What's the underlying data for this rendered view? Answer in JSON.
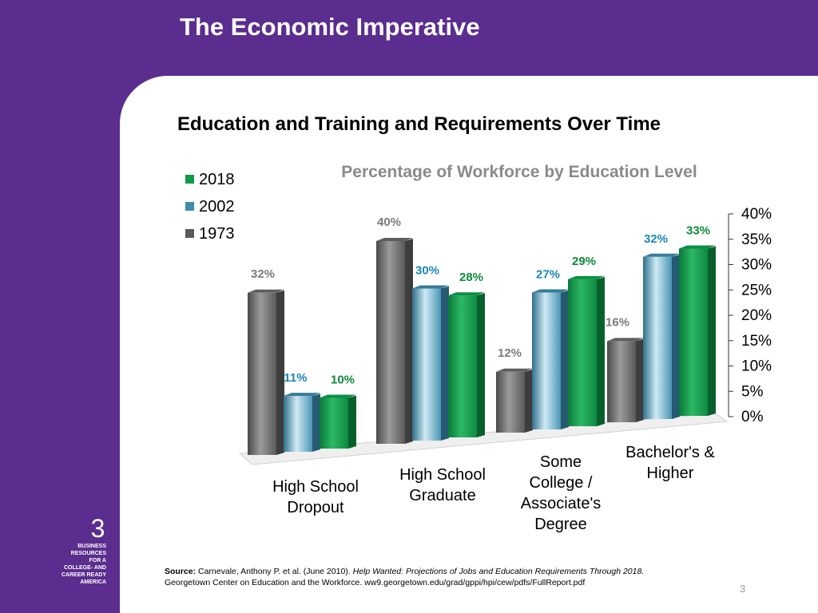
{
  "slide": {
    "title": "The Economic Imperative",
    "heading": "Education and Training and Requirements Over Time",
    "page_number": "3"
  },
  "logo": {
    "number": "3",
    "text": "BUSINESS\nRESOURCES\nFOR A\nCOLLEGE- AND\nCAREER READY\nAMERICA"
  },
  "source": {
    "label": "Source:",
    "authors": "Carnevale, Anthony P. et al. (June 2010).",
    "title": "Help Wanted: Projections of Jobs and Education Requirements Through 2018.",
    "line2": "Georgetown Center on Education and the Workforce.  ww9.georgetown.edu/grad/gppi/hpi/cew/pdfs/FullReport.pdf"
  },
  "colors": {
    "background": "#5b2d8e",
    "series_1973": "#6f6f6f",
    "series_2002": "#3f8cab",
    "series_2018": "#0f9a4a",
    "label_1973": "#7a7a7a",
    "label_2002": "#1a86b8",
    "label_2018": "#0d8a3c"
  },
  "chart_data": {
    "type": "bar",
    "title": "Percentage of Workforce by Education Level",
    "categories": [
      "High School Dropout",
      "High School Graduate",
      "Some College / Associate's Degree",
      "Bachelor's & Higher"
    ],
    "series": [
      {
        "name": "1973",
        "values": [
          32,
          40,
          12,
          16
        ],
        "labels": [
          "32%",
          "40%",
          "12%",
          "16%"
        ]
      },
      {
        "name": "2002",
        "values": [
          11,
          30,
          27,
          32
        ],
        "labels": [
          "11%",
          "30%",
          "27%",
          "32%"
        ]
      },
      {
        "name": "2018",
        "values": [
          10,
          28,
          29,
          33
        ],
        "labels": [
          "10%",
          "28%",
          "29%",
          "33%"
        ]
      }
    ],
    "legend_order": [
      "2018",
      "2002",
      "1973"
    ],
    "legend_position": "top-left",
    "y_ticks": [
      "0%",
      "5%",
      "10%",
      "15%",
      "20%",
      "25%",
      "30%",
      "35%",
      "40%"
    ],
    "ylim": [
      0,
      40
    ],
    "y_axis_position": "right",
    "grid": false,
    "style": "3d-cylinder"
  }
}
